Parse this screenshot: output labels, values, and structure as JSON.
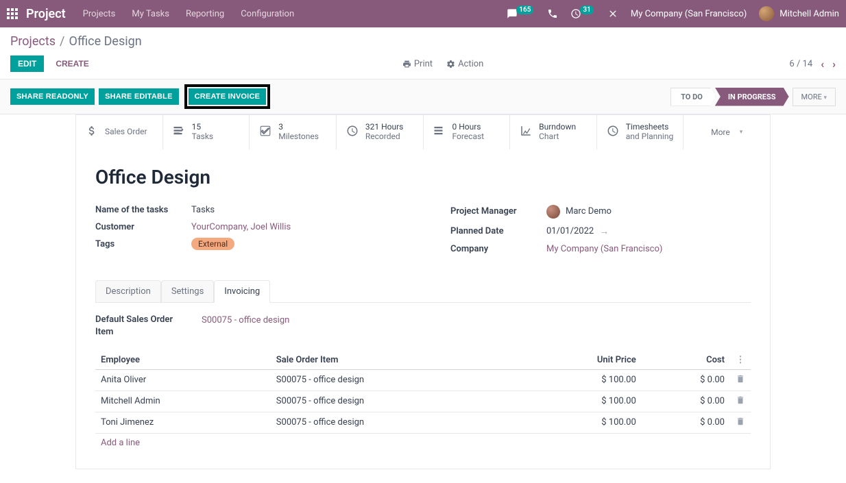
{
  "nav": {
    "brand": "Project",
    "menu": [
      "Projects",
      "My Tasks",
      "Reporting",
      "Configuration"
    ],
    "chat_badge": "165",
    "timer_badge": "31",
    "company": "My Company (San Francisco)",
    "user": "Mitchell Admin"
  },
  "breadcrumb": {
    "parent": "Projects",
    "current": "Office Design"
  },
  "actions": {
    "edit": "Edit",
    "create": "Create",
    "print": "Print",
    "action": "Action",
    "pager": "6 / 14"
  },
  "share": {
    "readonly": "SHARE READONLY",
    "editable": "SHARE EDITABLE",
    "create_invoice": "CREATE INVOICE"
  },
  "status": {
    "todo": "TO DO",
    "in_progress": "IN PROGRESS",
    "more": "MORE"
  },
  "stats": {
    "sales_order": {
      "label": "Sales Order"
    },
    "tasks": {
      "value": "15",
      "label": "Tasks"
    },
    "milestones": {
      "value": "3",
      "label": "Milestones"
    },
    "recorded": {
      "value": "321 Hours",
      "label": "Recorded"
    },
    "forecast": {
      "value": "0 Hours",
      "label": "Forecast"
    },
    "burndown": {
      "value": "Burndown",
      "label": "Chart"
    },
    "timesheets": {
      "value": "Timesheets",
      "label": "and Planning"
    },
    "more": "More"
  },
  "project": {
    "title": "Office Design",
    "fields": {
      "task_name_label": "Name of the tasks",
      "task_name": "Tasks",
      "customer_label": "Customer",
      "customer": "YourCompany, Joel Willis",
      "tags_label": "Tags",
      "tag": "External",
      "pm_label": "Project Manager",
      "pm": "Marc Demo",
      "planned_label": "Planned Date",
      "planned": "01/01/2022",
      "company_label": "Company",
      "company": "My Company (San Francisco)"
    }
  },
  "tabs": {
    "description": "Description",
    "settings": "Settings",
    "invoicing": "Invoicing"
  },
  "invoicing": {
    "default_label": "Default Sales Order Item",
    "default_value": "S00075 - office design",
    "headers": {
      "employee": "Employee",
      "item": "Sale Order Item",
      "price": "Unit Price",
      "cost": "Cost"
    },
    "rows": [
      {
        "employee": "Anita Oliver",
        "item": "S00075 - office design",
        "price": "$ 100.00",
        "cost": "$ 0.00"
      },
      {
        "employee": "Mitchell Admin",
        "item": "S00075 - office design",
        "price": "$ 100.00",
        "cost": "$ 0.00"
      },
      {
        "employee": "Toni Jimenez",
        "item": "S00075 - office design",
        "price": "$ 100.00",
        "cost": "$ 0.00"
      }
    ],
    "add_line": "Add a line"
  }
}
